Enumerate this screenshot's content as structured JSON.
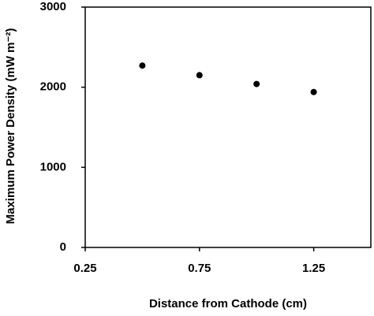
{
  "chart_data": {
    "type": "scatter",
    "x_label": "Distance from Cathode (cm)",
    "y_label": "Maximum Power Density (mW m⁻²)",
    "series": [
      {
        "x": [
          0.5,
          0.75,
          1.0,
          1.25
        ],
        "values": [
          2270,
          2150,
          2040,
          1940
        ],
        "color": "#000000"
      }
    ],
    "xlim": [
      0.25,
      1.5
    ],
    "xticks": [
      0.25,
      0.75,
      1.25
    ],
    "ylim": [
      0,
      3000
    ],
    "yticks": [
      0,
      1000,
      2000,
      3000
    ]
  }
}
